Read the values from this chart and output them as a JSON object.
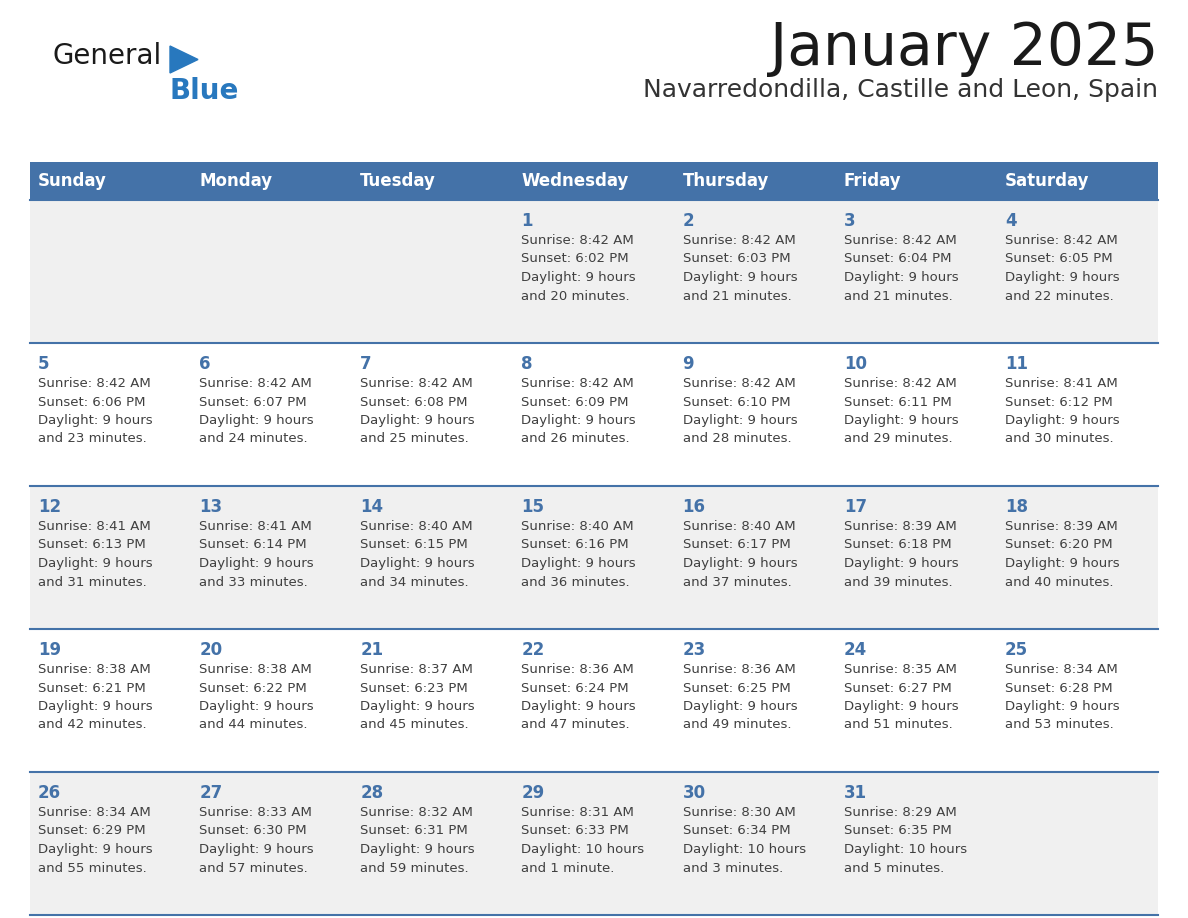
{
  "title": "January 2025",
  "subtitle": "Navarredondilla, Castille and Leon, Spain",
  "days_of_week": [
    "Sunday",
    "Monday",
    "Tuesday",
    "Wednesday",
    "Thursday",
    "Friday",
    "Saturday"
  ],
  "header_bg": "#4472A8",
  "header_text": "#FFFFFF",
  "row_bg_odd": "#F0F0F0",
  "row_bg_even": "#FFFFFF",
  "border_color": "#4472A8",
  "day_number_color": "#4472A8",
  "text_color": "#404040",
  "title_color": "#1a1a1a",
  "subtitle_color": "#333333",
  "logo_general_color": "#1a1a1a",
  "logo_blue_color": "#2878BE",
  "calendar": [
    [
      {
        "day": "",
        "info": ""
      },
      {
        "day": "",
        "info": ""
      },
      {
        "day": "",
        "info": ""
      },
      {
        "day": "1",
        "info": "Sunrise: 8:42 AM\nSunset: 6:02 PM\nDaylight: 9 hours\nand 20 minutes."
      },
      {
        "day": "2",
        "info": "Sunrise: 8:42 AM\nSunset: 6:03 PM\nDaylight: 9 hours\nand 21 minutes."
      },
      {
        "day": "3",
        "info": "Sunrise: 8:42 AM\nSunset: 6:04 PM\nDaylight: 9 hours\nand 21 minutes."
      },
      {
        "day": "4",
        "info": "Sunrise: 8:42 AM\nSunset: 6:05 PM\nDaylight: 9 hours\nand 22 minutes."
      }
    ],
    [
      {
        "day": "5",
        "info": "Sunrise: 8:42 AM\nSunset: 6:06 PM\nDaylight: 9 hours\nand 23 minutes."
      },
      {
        "day": "6",
        "info": "Sunrise: 8:42 AM\nSunset: 6:07 PM\nDaylight: 9 hours\nand 24 minutes."
      },
      {
        "day": "7",
        "info": "Sunrise: 8:42 AM\nSunset: 6:08 PM\nDaylight: 9 hours\nand 25 minutes."
      },
      {
        "day": "8",
        "info": "Sunrise: 8:42 AM\nSunset: 6:09 PM\nDaylight: 9 hours\nand 26 minutes."
      },
      {
        "day": "9",
        "info": "Sunrise: 8:42 AM\nSunset: 6:10 PM\nDaylight: 9 hours\nand 28 minutes."
      },
      {
        "day": "10",
        "info": "Sunrise: 8:42 AM\nSunset: 6:11 PM\nDaylight: 9 hours\nand 29 minutes."
      },
      {
        "day": "11",
        "info": "Sunrise: 8:41 AM\nSunset: 6:12 PM\nDaylight: 9 hours\nand 30 minutes."
      }
    ],
    [
      {
        "day": "12",
        "info": "Sunrise: 8:41 AM\nSunset: 6:13 PM\nDaylight: 9 hours\nand 31 minutes."
      },
      {
        "day": "13",
        "info": "Sunrise: 8:41 AM\nSunset: 6:14 PM\nDaylight: 9 hours\nand 33 minutes."
      },
      {
        "day": "14",
        "info": "Sunrise: 8:40 AM\nSunset: 6:15 PM\nDaylight: 9 hours\nand 34 minutes."
      },
      {
        "day": "15",
        "info": "Sunrise: 8:40 AM\nSunset: 6:16 PM\nDaylight: 9 hours\nand 36 minutes."
      },
      {
        "day": "16",
        "info": "Sunrise: 8:40 AM\nSunset: 6:17 PM\nDaylight: 9 hours\nand 37 minutes."
      },
      {
        "day": "17",
        "info": "Sunrise: 8:39 AM\nSunset: 6:18 PM\nDaylight: 9 hours\nand 39 minutes."
      },
      {
        "day": "18",
        "info": "Sunrise: 8:39 AM\nSunset: 6:20 PM\nDaylight: 9 hours\nand 40 minutes."
      }
    ],
    [
      {
        "day": "19",
        "info": "Sunrise: 8:38 AM\nSunset: 6:21 PM\nDaylight: 9 hours\nand 42 minutes."
      },
      {
        "day": "20",
        "info": "Sunrise: 8:38 AM\nSunset: 6:22 PM\nDaylight: 9 hours\nand 44 minutes."
      },
      {
        "day": "21",
        "info": "Sunrise: 8:37 AM\nSunset: 6:23 PM\nDaylight: 9 hours\nand 45 minutes."
      },
      {
        "day": "22",
        "info": "Sunrise: 8:36 AM\nSunset: 6:24 PM\nDaylight: 9 hours\nand 47 minutes."
      },
      {
        "day": "23",
        "info": "Sunrise: 8:36 AM\nSunset: 6:25 PM\nDaylight: 9 hours\nand 49 minutes."
      },
      {
        "day": "24",
        "info": "Sunrise: 8:35 AM\nSunset: 6:27 PM\nDaylight: 9 hours\nand 51 minutes."
      },
      {
        "day": "25",
        "info": "Sunrise: 8:34 AM\nSunset: 6:28 PM\nDaylight: 9 hours\nand 53 minutes."
      }
    ],
    [
      {
        "day": "26",
        "info": "Sunrise: 8:34 AM\nSunset: 6:29 PM\nDaylight: 9 hours\nand 55 minutes."
      },
      {
        "day": "27",
        "info": "Sunrise: 8:33 AM\nSunset: 6:30 PM\nDaylight: 9 hours\nand 57 minutes."
      },
      {
        "day": "28",
        "info": "Sunrise: 8:32 AM\nSunset: 6:31 PM\nDaylight: 9 hours\nand 59 minutes."
      },
      {
        "day": "29",
        "info": "Sunrise: 8:31 AM\nSunset: 6:33 PM\nDaylight: 10 hours\nand 1 minute."
      },
      {
        "day": "30",
        "info": "Sunrise: 8:30 AM\nSunset: 6:34 PM\nDaylight: 10 hours\nand 3 minutes."
      },
      {
        "day": "31",
        "info": "Sunrise: 8:29 AM\nSunset: 6:35 PM\nDaylight: 10 hours\nand 5 minutes."
      },
      {
        "day": "",
        "info": ""
      }
    ]
  ]
}
